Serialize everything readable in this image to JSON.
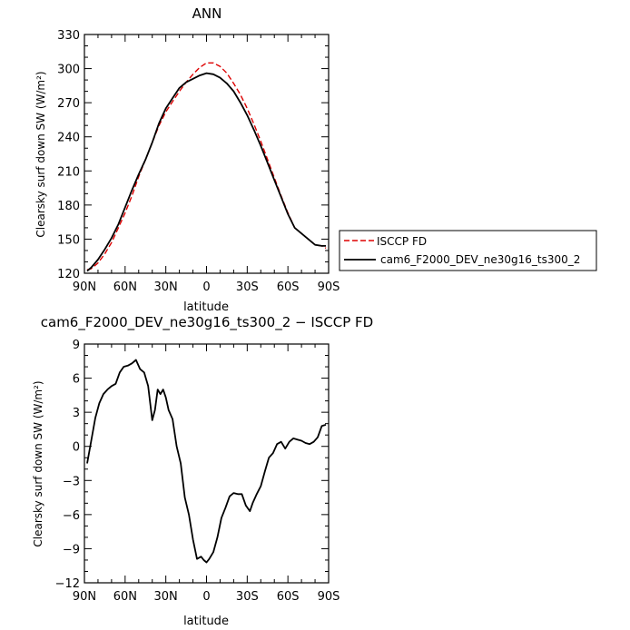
{
  "chart_data": [
    {
      "type": "line",
      "title": "ANN",
      "xlabel": "latitude",
      "ylabel": "Clearsky surf down SW (W/m²)",
      "xlim": [
        90,
        -90
      ],
      "ylim": [
        120,
        330
      ],
      "xticks": [
        90,
        60,
        30,
        0,
        -30,
        -60,
        -90
      ],
      "xtick_labels": [
        "90N",
        "60N",
        "30N",
        "0",
        "30S",
        "60S",
        "90S"
      ],
      "yticks": [
        120,
        150,
        180,
        210,
        240,
        270,
        300,
        330
      ],
      "ytick_labels": [
        "120",
        "150",
        "180",
        "210",
        "240",
        "270",
        "300",
        "330"
      ],
      "legend_position": "right",
      "series": [
        {
          "name": "ISCCP FD",
          "color": "#dd0000",
          "dash": true,
          "x": [
            88,
            85,
            80,
            75,
            70,
            65,
            60,
            55,
            50,
            45,
            40,
            35,
            30,
            25,
            20,
            15,
            10,
            5,
            0,
            -5,
            -10,
            -15,
            -20,
            -25,
            -30,
            -35,
            -40,
            -45,
            -50,
            -55,
            -60,
            -65,
            -70,
            -75,
            -80,
            -85,
            -88
          ],
          "y": [
            123,
            124,
            129,
            137,
            147,
            160,
            173,
            188,
            205,
            220,
            235,
            250,
            262,
            271,
            280,
            288,
            295,
            301,
            305,
            305,
            302,
            296,
            287,
            277,
            265,
            251,
            236,
            220,
            204,
            188,
            173,
            160,
            155,
            150,
            145,
            144,
            142
          ]
        },
        {
          "name": "cam6_F2000_DEV_ne30g16_ts300_2",
          "color": "#000000",
          "dash": false,
          "x": [
            88,
            85,
            80,
            75,
            70,
            65,
            60,
            55,
            50,
            45,
            40,
            35,
            30,
            25,
            20,
            15,
            10,
            5,
            0,
            -5,
            -10,
            -15,
            -20,
            -25,
            -30,
            -35,
            -40,
            -45,
            -50,
            -55,
            -60,
            -65,
            -70,
            -75,
            -80,
            -85,
            -88
          ],
          "y": [
            122,
            125,
            132,
            141,
            151,
            163,
            178,
            193,
            207,
            220,
            235,
            252,
            265,
            274,
            283,
            288,
            291,
            294,
            296,
            295,
            292,
            287,
            280,
            270,
            259,
            246,
            232,
            217,
            202,
            187,
            172,
            160,
            155,
            150,
            145,
            144,
            144
          ]
        }
      ]
    },
    {
      "type": "line",
      "title": "cam6_F2000_DEV_ne30g16_ts300_2 − ISCCP FD",
      "xlabel": "latitude",
      "ylabel": "Clearsky surf down SW (W/m²)",
      "xlim": [
        90,
        -90
      ],
      "ylim": [
        -12,
        9
      ],
      "xticks": [
        90,
        60,
        30,
        0,
        -30,
        -60,
        -90
      ],
      "xtick_labels": [
        "90N",
        "60N",
        "30N",
        "0",
        "30S",
        "60S",
        "90S"
      ],
      "yticks": [
        -12,
        -9,
        -6,
        -3,
        0,
        3,
        6,
        9
      ],
      "ytick_labels": [
        "−12",
        "−9",
        "−6",
        "−3",
        "0",
        "3",
        "6",
        "9"
      ],
      "series": [
        {
          "color": "#000000",
          "x": [
            88,
            85,
            82,
            79,
            76,
            73,
            70,
            67,
            64,
            61,
            58,
            55,
            52,
            49,
            46,
            43,
            40,
            38,
            36,
            34,
            32,
            30,
            28,
            25,
            22,
            19,
            16,
            13,
            10,
            7,
            4,
            2,
            0,
            -2,
            -5,
            -8,
            -11,
            -14,
            -17,
            -20,
            -23,
            -26,
            -29,
            -32,
            -34,
            -37,
            -40,
            -43,
            -46,
            -49,
            -52,
            -55,
            -58,
            -61,
            -64,
            -67,
            -70,
            -73,
            -76,
            -79,
            -82,
            -85,
            -88
          ],
          "y": [
            -1.5,
            0.5,
            2.5,
            3.8,
            4.6,
            5.0,
            5.3,
            5.5,
            6.5,
            7.0,
            7.1,
            7.3,
            7.6,
            6.8,
            6.5,
            5.3,
            2.3,
            3.2,
            5.0,
            4.6,
            5.0,
            4.3,
            3.2,
            2.4,
            0,
            -1.5,
            -4.5,
            -6.0,
            -8.2,
            -9.9,
            -9.7,
            -10.0,
            -10.2,
            -9.9,
            -9.3,
            -8.0,
            -6.3,
            -5.4,
            -4.4,
            -4.1,
            -4.2,
            -4.2,
            -5.2,
            -5.7,
            -5.0,
            -4.2,
            -3.5,
            -2.2,
            -1.0,
            -0.6,
            0.2,
            0.4,
            -0.2,
            0.4,
            0.7,
            0.6,
            0.5,
            0.3,
            0.2,
            0.4,
            0.8,
            1.8,
            1.9
          ]
        }
      ]
    }
  ]
}
